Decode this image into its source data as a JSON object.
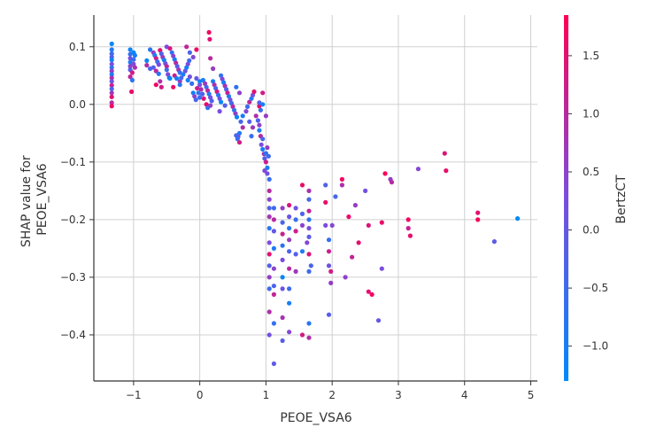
{
  "chart_data": {
    "type": "scatter",
    "xlabel": "PEOE_VSA6",
    "ylabel_lines": [
      "SHAP value for",
      "PEOE_VSA6"
    ],
    "xlim": [
      -1.6,
      5.1
    ],
    "ylim": [
      -0.48,
      0.155
    ],
    "xticks": [
      -1,
      0,
      1,
      2,
      3,
      4,
      5
    ],
    "xtick_labels": [
      "−1",
      "0",
      "1",
      "2",
      "3",
      "4",
      "5"
    ],
    "yticks": [
      -0.4,
      -0.3,
      -0.2,
      -0.1,
      0.0,
      0.1
    ],
    "ytick_labels": [
      "−0.4",
      "−0.3",
      "−0.2",
      "−0.1",
      "0.0",
      "0.1"
    ],
    "grid": true,
    "colorbar": {
      "label": "BertzCT",
      "range": [
        -1.3,
        1.85
      ],
      "ticks": [
        -1.0,
        -0.5,
        0.0,
        0.5,
        1.0,
        1.5
      ],
      "tick_labels": [
        "−1.0",
        "−0.5",
        "0.0",
        "0.5",
        "1.0",
        "1.5"
      ],
      "colors": [
        "#008afb",
        "#7a4de0",
        "#ff0052"
      ]
    },
    "points": [
      [
        -1.33,
        0.105,
        -1.2
      ],
      [
        -1.33,
        0.095,
        -0.9
      ],
      [
        -1.33,
        0.088,
        -0.5
      ],
      [
        -1.33,
        0.082,
        -0.2
      ],
      [
        -1.33,
        0.077,
        -1.1
      ],
      [
        -1.33,
        0.07,
        0.3
      ],
      [
        -1.33,
        0.064,
        -0.7
      ],
      [
        -1.33,
        0.058,
        0.6
      ],
      [
        -1.33,
        0.052,
        -1.0
      ],
      [
        -1.33,
        0.046,
        0.9
      ],
      [
        -1.33,
        0.04,
        0.1
      ],
      [
        -1.33,
        0.033,
        1.2
      ],
      [
        -1.33,
        0.027,
        -0.4
      ],
      [
        -1.33,
        0.02,
        0.7
      ],
      [
        -1.33,
        0.013,
        1.5
      ],
      [
        -1.33,
        0.003,
        1.0
      ],
      [
        -1.33,
        -0.003,
        1.7
      ],
      [
        -1.05,
        0.095,
        -1.1
      ],
      [
        -1.05,
        0.087,
        -0.6
      ],
      [
        -1.05,
        0.08,
        0.2
      ],
      [
        -1.05,
        0.073,
        -0.9
      ],
      [
        -1.05,
        0.066,
        0.5
      ],
      [
        -1.05,
        0.06,
        -0.3
      ],
      [
        -1.05,
        0.048,
        1.1
      ],
      [
        -1.0,
        0.09,
        -1.2
      ],
      [
        -1.0,
        0.078,
        -0.5
      ],
      [
        -1.0,
        0.07,
        0.4
      ],
      [
        -0.98,
        0.085,
        -1.0
      ],
      [
        -0.98,
        0.064,
        0.8
      ],
      [
        -1.02,
        0.055,
        1.3
      ],
      [
        -1.02,
        0.042,
        -0.7
      ],
      [
        -1.03,
        0.022,
        1.6
      ],
      [
        -0.8,
        0.076,
        -1.1
      ],
      [
        -0.8,
        0.068,
        0.9
      ],
      [
        -0.75,
        0.062,
        -0.4
      ],
      [
        -0.75,
        0.095,
        -0.8
      ],
      [
        -0.7,
        0.09,
        0.6
      ],
      [
        -0.68,
        0.085,
        -1.0
      ],
      [
        -0.66,
        0.08,
        1.2
      ],
      [
        -0.64,
        0.074,
        -0.6
      ],
      [
        -0.62,
        0.069,
        0.3
      ],
      [
        -0.7,
        0.064,
        -0.2
      ],
      [
        -0.66,
        0.058,
        1.0
      ],
      [
        -0.62,
        0.053,
        -0.9
      ],
      [
        -0.6,
        0.094,
        1.5
      ],
      [
        -0.58,
        0.088,
        -0.3
      ],
      [
        -0.56,
        0.082,
        0.7
      ],
      [
        -0.54,
        0.077,
        -1.1
      ],
      [
        -0.52,
        0.071,
        0.2
      ],
      [
        -0.5,
        0.066,
        1.1
      ],
      [
        -0.66,
        0.034,
        1.7
      ],
      [
        -0.6,
        0.04,
        0.9
      ],
      [
        -0.58,
        0.03,
        1.3
      ],
      [
        -0.5,
        0.06,
        -0.5
      ],
      [
        -0.48,
        0.052,
        0.4
      ],
      [
        -0.46,
        0.046,
        -0.8
      ],
      [
        -0.5,
        0.1,
        0.3
      ],
      [
        -0.45,
        0.097,
        1.4
      ],
      [
        -0.42,
        0.09,
        -0.7
      ],
      [
        -0.4,
        0.084,
        0.5
      ],
      [
        -0.38,
        0.078,
        -1.0
      ],
      [
        -0.36,
        0.072,
        1.0
      ],
      [
        -0.34,
        0.066,
        -0.2
      ],
      [
        -0.32,
        0.06,
        0.8
      ],
      [
        -0.3,
        0.055,
        -0.6
      ],
      [
        -0.38,
        0.05,
        1.2
      ],
      [
        -0.35,
        0.045,
        -1.1
      ],
      [
        -0.3,
        0.04,
        0.6
      ],
      [
        -0.28,
        0.046,
        -0.4
      ],
      [
        -0.25,
        0.052,
        -0.9
      ],
      [
        -0.22,
        0.058,
        0.1
      ],
      [
        -0.2,
        0.064,
        -1.2
      ],
      [
        -0.18,
        0.07,
        0.3
      ],
      [
        -0.16,
        0.076,
        -0.5
      ],
      [
        -0.45,
        0.045,
        -1.2
      ],
      [
        -0.4,
        0.03,
        1.6
      ],
      [
        -0.3,
        0.034,
        -0.8
      ],
      [
        -0.2,
        0.1,
        1.1
      ],
      [
        -0.15,
        0.09,
        -0.3
      ],
      [
        -0.1,
        0.082,
        0.4
      ],
      [
        -0.05,
        0.095,
        1.6
      ],
      [
        -0.18,
        0.042,
        -1.0
      ],
      [
        -0.15,
        0.048,
        0.2
      ],
      [
        -0.12,
        0.036,
        -0.6
      ],
      [
        -0.1,
        0.02,
        -1.0
      ],
      [
        -0.08,
        0.014,
        0.5
      ],
      [
        -0.06,
        0.008,
        -0.4
      ],
      [
        -0.04,
        0.028,
        1.2
      ],
      [
        -0.02,
        0.02,
        -0.8
      ],
      [
        0.0,
        0.034,
        0.3
      ],
      [
        0.0,
        0.04,
        -1.1
      ],
      [
        0.02,
        0.026,
        0.9
      ],
      [
        0.04,
        0.018,
        -0.2
      ],
      [
        0.06,
        0.01,
        1.4
      ],
      [
        0.0,
        0.012,
        -0.6
      ],
      [
        -0.05,
        0.045,
        0.0
      ],
      [
        0.05,
        0.042,
        -1.0
      ],
      [
        0.08,
        0.036,
        0.7
      ],
      [
        0.1,
        0.03,
        -0.5
      ],
      [
        0.12,
        0.024,
        1.1
      ],
      [
        0.14,
        0.018,
        -0.9
      ],
      [
        0.16,
        0.012,
        0.2
      ],
      [
        0.18,
        0.006,
        -0.3
      ],
      [
        0.1,
        0.0,
        1.6
      ],
      [
        0.12,
        -0.006,
        -0.7
      ],
      [
        0.16,
        -0.002,
        0.5
      ],
      [
        0.2,
        0.04,
        -1.0
      ],
      [
        0.22,
        0.034,
        0.9
      ],
      [
        0.24,
        0.028,
        -0.4
      ],
      [
        0.26,
        0.022,
        1.3
      ],
      [
        0.28,
        0.016,
        -0.8
      ],
      [
        0.3,
        0.01,
        0.1
      ],
      [
        0.32,
        0.004,
        -1.2
      ],
      [
        0.2,
        0.062,
        0.6
      ],
      [
        0.16,
        0.08,
        1.0
      ],
      [
        0.14,
        0.125,
        1.7
      ],
      [
        0.15,
        0.113,
        1.5
      ],
      [
        0.32,
        0.05,
        -0.6
      ],
      [
        0.34,
        0.044,
        0.4
      ],
      [
        0.36,
        0.038,
        -1.0
      ],
      [
        0.38,
        0.032,
        0.8
      ],
      [
        0.4,
        0.026,
        -0.3
      ],
      [
        0.42,
        0.02,
        1.2
      ],
      [
        0.44,
        0.014,
        -0.9
      ],
      [
        0.46,
        0.008,
        0.2
      ],
      [
        0.48,
        0.002,
        -0.5
      ],
      [
        0.5,
        -0.004,
        1.0
      ],
      [
        0.52,
        -0.01,
        -0.8
      ],
      [
        0.54,
        -0.016,
        0.6
      ],
      [
        0.56,
        -0.022,
        -1.1
      ],
      [
        0.3,
        -0.012,
        0.3
      ],
      [
        0.38,
        -0.002,
        -0.2
      ],
      [
        0.55,
        0.03,
        -0.7
      ],
      [
        0.6,
        0.02,
        0.5
      ],
      [
        0.62,
        -0.03,
        -0.4
      ],
      [
        0.65,
        -0.04,
        0.9
      ],
      [
        0.6,
        -0.05,
        -0.9
      ],
      [
        0.58,
        -0.056,
        0.1
      ],
      [
        0.55,
        -0.054,
        -0.3
      ],
      [
        0.57,
        -0.06,
        -0.6
      ],
      [
        0.6,
        -0.066,
        1.3
      ],
      [
        0.65,
        -0.02,
        -1.0
      ],
      [
        0.7,
        -0.012,
        0.4
      ],
      [
        0.72,
        -0.004,
        -0.5
      ],
      [
        0.75,
        0.004,
        1.1
      ],
      [
        0.78,
        0.01,
        -0.8
      ],
      [
        0.8,
        0.016,
        0.2
      ],
      [
        0.82,
        0.022,
        1.5
      ],
      [
        0.75,
        -0.03,
        -0.2
      ],
      [
        0.8,
        -0.04,
        0.7
      ],
      [
        0.78,
        -0.055,
        -0.6
      ],
      [
        0.85,
        -0.02,
        0.9
      ],
      [
        0.88,
        -0.028,
        -0.3
      ],
      [
        0.9,
        -0.036,
        0.5
      ],
      [
        0.9,
        -0.045,
        -0.9
      ],
      [
        0.92,
        -0.055,
        1.0
      ],
      [
        0.95,
        -0.06,
        -0.4
      ],
      [
        0.93,
        -0.07,
        0.3
      ],
      [
        0.95,
        -0.078,
        -1.0
      ],
      [
        0.97,
        -0.086,
        0.8
      ],
      [
        0.98,
        -0.094,
        -0.2
      ],
      [
        1.0,
        -0.1,
        1.2
      ],
      [
        1.0,
        -0.085,
        -0.7
      ],
      [
        1.02,
        -0.075,
        0.6
      ],
      [
        1.04,
        -0.09,
        -0.5
      ],
      [
        0.98,
        -0.115,
        0.4
      ],
      [
        1.02,
        -0.11,
        -0.9
      ],
      [
        0.9,
        -0.003,
        1.6
      ],
      [
        0.9,
        0.003,
        -0.2
      ],
      [
        1.0,
        -0.02,
        0.6
      ],
      [
        0.95,
        0.02,
        1.3
      ],
      [
        0.92,
        -0.01,
        -0.6
      ],
      [
        0.95,
        0.0,
        -1.1
      ],
      [
        1.02,
        -0.12,
        0.2
      ],
      [
        1.05,
        -0.13,
        -0.6
      ],
      [
        1.05,
        -0.15,
        1.0
      ],
      [
        1.05,
        -0.165,
        0.5
      ],
      [
        1.05,
        -0.18,
        -0.3
      ],
      [
        1.05,
        -0.195,
        0.8
      ],
      [
        1.05,
        -0.215,
        -0.8
      ],
      [
        1.05,
        -0.24,
        0.3
      ],
      [
        1.05,
        -0.26,
        1.5
      ],
      [
        1.05,
        -0.28,
        -0.2
      ],
      [
        1.05,
        -0.3,
        0.6
      ],
      [
        1.05,
        -0.32,
        -0.5
      ],
      [
        1.05,
        -0.36,
        0.9
      ],
      [
        1.05,
        -0.4,
        0.2
      ],
      [
        1.12,
        -0.18,
        -0.5
      ],
      [
        1.12,
        -0.2,
        1.0
      ],
      [
        1.12,
        -0.22,
        0.0
      ],
      [
        1.12,
        -0.25,
        -0.9
      ],
      [
        1.12,
        -0.285,
        0.5
      ],
      [
        1.12,
        -0.315,
        -0.3
      ],
      [
        1.12,
        -0.33,
        1.1
      ],
      [
        1.12,
        -0.38,
        -0.6
      ],
      [
        1.12,
        -0.45,
        -0.1
      ],
      [
        1.25,
        -0.18,
        0.6
      ],
      [
        1.25,
        -0.205,
        -0.4
      ],
      [
        1.25,
        -0.225,
        1.2
      ],
      [
        1.25,
        -0.245,
        -0.7
      ],
      [
        1.25,
        -0.27,
        0.3
      ],
      [
        1.25,
        -0.3,
        -1.2
      ],
      [
        1.25,
        -0.32,
        0.1
      ],
      [
        1.25,
        -0.37,
        0.8
      ],
      [
        1.25,
        -0.41,
        -0.2
      ],
      [
        1.35,
        -0.175,
        1.4
      ],
      [
        1.35,
        -0.195,
        0.0
      ],
      [
        1.35,
        -0.215,
        -0.8
      ],
      [
        1.35,
        -0.235,
        0.6
      ],
      [
        1.35,
        -0.255,
        -0.3
      ],
      [
        1.35,
        -0.285,
        1.0
      ],
      [
        1.35,
        -0.32,
        -0.5
      ],
      [
        1.35,
        -0.345,
        -1.0
      ],
      [
        1.35,
        -0.395,
        0.4
      ],
      [
        1.45,
        -0.18,
        0.2
      ],
      [
        1.45,
        -0.2,
        -0.6
      ],
      [
        1.45,
        -0.22,
        1.2
      ],
      [
        1.45,
        -0.26,
        -0.2
      ],
      [
        1.45,
        -0.29,
        0.7
      ],
      [
        1.55,
        -0.14,
        1.6
      ],
      [
        1.55,
        -0.19,
        -0.3
      ],
      [
        1.55,
        -0.21,
        0.5
      ],
      [
        1.55,
        -0.255,
        -0.9
      ],
      [
        1.55,
        -0.4,
        1.3
      ],
      [
        1.65,
        -0.15,
        0.8
      ],
      [
        1.65,
        -0.165,
        -0.4
      ],
      [
        1.65,
        -0.185,
        1.1
      ],
      [
        1.65,
        -0.2,
        -0.7
      ],
      [
        1.65,
        -0.215,
        0.3
      ],
      [
        1.65,
        -0.23,
        -0.1
      ],
      [
        1.65,
        -0.26,
        1.4
      ],
      [
        1.65,
        -0.29,
        -0.5
      ],
      [
        1.65,
        -0.405,
        0.9
      ],
      [
        1.65,
        -0.38,
        -0.8
      ],
      [
        1.62,
        -0.24,
        0.4
      ],
      [
        1.68,
        -0.28,
        -0.3
      ],
      [
        1.9,
        -0.14,
        -0.3
      ],
      [
        1.9,
        -0.17,
        1.6
      ],
      [
        1.9,
        -0.21,
        0.3
      ],
      [
        1.95,
        -0.235,
        -0.6
      ],
      [
        1.95,
        -0.255,
        1.2
      ],
      [
        1.95,
        -0.28,
        0.1
      ],
      [
        1.98,
        -0.31,
        0.6
      ],
      [
        1.95,
        -0.365,
        -0.2
      ],
      [
        1.98,
        -0.29,
        1.3
      ],
      [
        2.0,
        -0.21,
        0.4
      ],
      [
        2.05,
        -0.16,
        -0.4
      ],
      [
        2.15,
        -0.13,
        1.7
      ],
      [
        2.15,
        -0.14,
        0.9
      ],
      [
        2.2,
        -0.3,
        0.5
      ],
      [
        2.25,
        -0.195,
        1.6
      ],
      [
        2.3,
        -0.265,
        1.1
      ],
      [
        2.35,
        -0.175,
        0.6
      ],
      [
        2.4,
        -0.24,
        1.5
      ],
      [
        2.5,
        -0.15,
        0.2
      ],
      [
        2.55,
        -0.21,
        1.4
      ],
      [
        2.55,
        -0.325,
        1.5
      ],
      [
        2.6,
        -0.33,
        1.7
      ],
      [
        2.7,
        -0.375,
        0.0
      ],
      [
        2.75,
        -0.285,
        0.3
      ],
      [
        2.75,
        -0.205,
        1.6
      ],
      [
        2.8,
        -0.12,
        1.8
      ],
      [
        2.88,
        -0.13,
        0.6
      ],
      [
        2.9,
        -0.135,
        1.0
      ],
      [
        3.15,
        -0.2,
        1.7
      ],
      [
        3.15,
        -0.215,
        1.2
      ],
      [
        3.18,
        -0.228,
        1.6
      ],
      [
        3.3,
        -0.112,
        0.4
      ],
      [
        3.7,
        -0.085,
        1.4
      ],
      [
        3.72,
        -0.115,
        1.6
      ],
      [
        4.2,
        -0.188,
        1.5
      ],
      [
        4.2,
        -0.2,
        1.8
      ],
      [
        4.45,
        -0.238,
        -0.1
      ],
      [
        4.8,
        -0.198,
        -1.3
      ]
    ]
  }
}
